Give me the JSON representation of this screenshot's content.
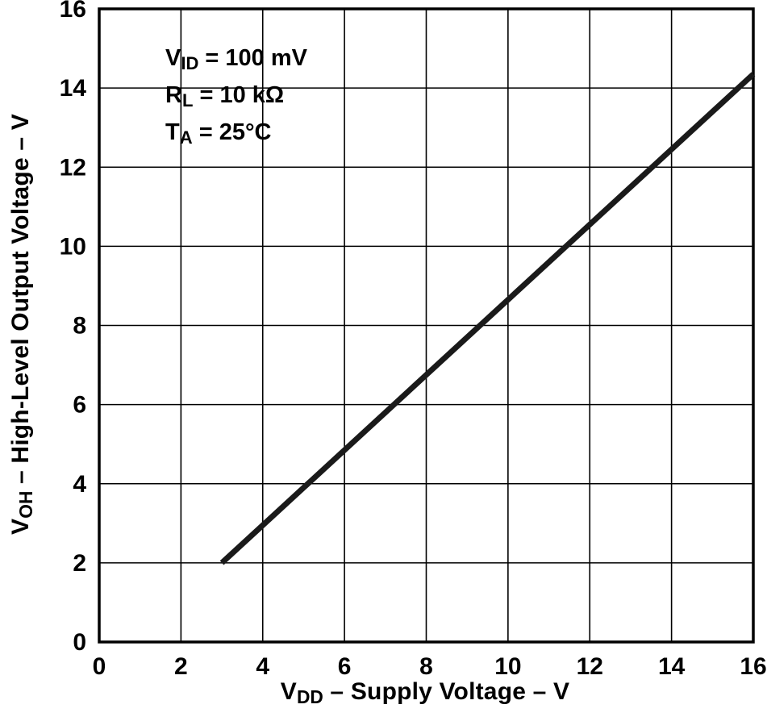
{
  "chart_data": {
    "type": "line",
    "title": "",
    "xlabel": {
      "pre": "V",
      "sub": "DD",
      "post": " – Supply Voltage – V"
    },
    "ylabel": {
      "pre": "V",
      "sub": "OH",
      "post": " – High-Level Output Voltage – V"
    },
    "xlim": [
      0,
      16
    ],
    "ylim": [
      0,
      16
    ],
    "xticks": [
      0,
      2,
      4,
      6,
      8,
      10,
      12,
      14,
      16
    ],
    "yticks": [
      0,
      2,
      4,
      6,
      8,
      10,
      12,
      14,
      16
    ],
    "grid": true,
    "legend": "none",
    "annotations": [
      {
        "pre": "V",
        "sub": "ID",
        "post": " = 100 mV"
      },
      {
        "pre": "R",
        "sub": "L",
        "post": " = 10 kΩ"
      },
      {
        "pre": "T",
        "sub": "A",
        "post": " = 25°C"
      }
    ],
    "series": [
      {
        "name": "VOH vs VDD",
        "points": [
          [
            3,
            2.0
          ],
          [
            16,
            14.35
          ]
        ]
      }
    ]
  },
  "colors": {
    "background": "#ffffff",
    "grid": "#000000",
    "frame": "#000000",
    "line": "#1a1a1a",
    "text": "#000000"
  }
}
